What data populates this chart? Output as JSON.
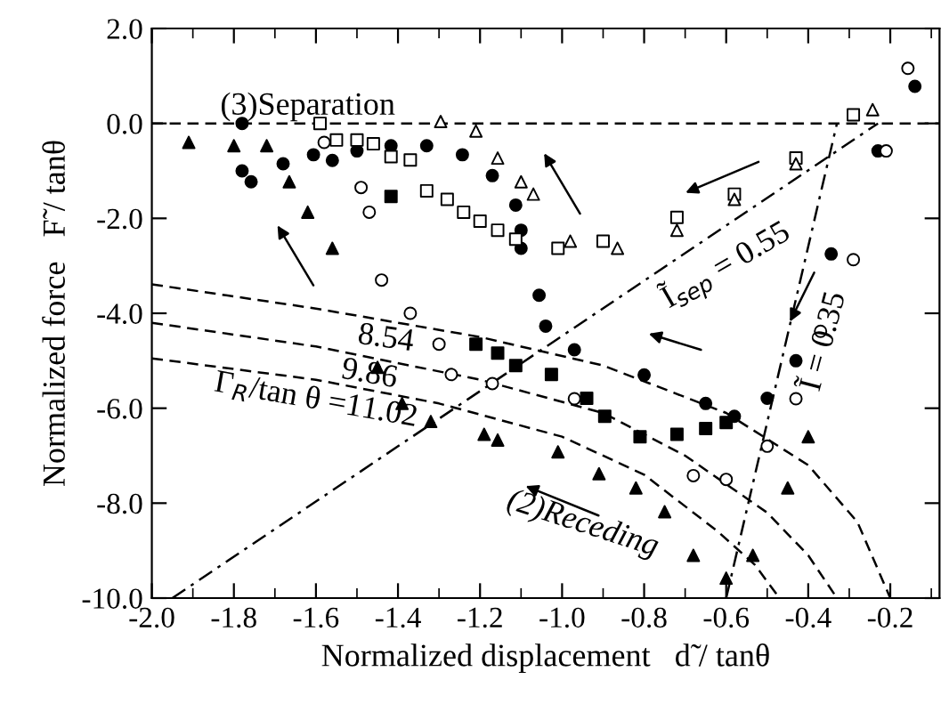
{
  "chart_data": {
    "type": "scatter",
    "xlabel": "Normalized displacement   d̃ / tanθ",
    "ylabel": "Normalized force   F̃ / tanθ",
    "xlim": [
      -2.0,
      -0.08
    ],
    "ylim": [
      -10.0,
      2.0
    ],
    "xticks": [
      {
        "value": -2.0,
        "label": "-2.0"
      },
      -1.8,
      -1.6,
      -1.4,
      -1.2,
      {
        "value": -1.0,
        "label": "-1.0"
      },
      -0.8,
      -0.6,
      -0.4,
      -0.2
    ],
    "yticks": [
      {
        "value": -10.0,
        "label": "-10.0"
      },
      {
        "value": -8.0,
        "label": "-8.0"
      },
      {
        "value": -6.0,
        "label": "-6.0"
      },
      {
        "value": -4.0,
        "label": "-4.0"
      },
      {
        "value": -2.0,
        "label": "-2.0"
      },
      {
        "value": 0.0,
        "label": "0.0"
      },
      {
        "value": 2.0,
        "label": "2.0"
      }
    ],
    "grid": false,
    "legend": false,
    "ref_lines": [
      {
        "axis": "y",
        "value": 0.0,
        "line_style": "dashed",
        "color": "#000000"
      }
    ],
    "annotations": [
      "(3)Separation",
      "8.54",
      "9.86",
      "Γ$_{R}$/tan θ =11.02",
      "(2)Receding",
      "Ĩ$_{sep}$ = 0.55",
      "Ĩ = 0.35"
    ],
    "series": [
      {
        "type": "line",
        "line_style": "dashed",
        "marker": "none",
        "color": "#000000",
        "x": [
          -2.0,
          -1.6,
          -1.2,
          -0.9,
          -0.6,
          -0.4,
          -0.28,
          -0.2
        ],
        "values": [
          -3.39,
          -3.9,
          -4.5,
          -5.1,
          -6.1,
          -7.2,
          -8.4,
          -10.0
        ]
      },
      {
        "type": "line",
        "line_style": "dashed",
        "marker": "none",
        "color": "#000000",
        "x": [
          -2.0,
          -1.6,
          -1.2,
          -0.9,
          -0.7,
          -0.5,
          -0.4,
          -0.33
        ],
        "values": [
          -4.2,
          -4.7,
          -5.4,
          -6.1,
          -7.0,
          -8.2,
          -9.1,
          -10.0
        ]
      },
      {
        "type": "line",
        "line_style": "dashed",
        "marker": "none",
        "color": "#000000",
        "x": [
          -2.0,
          -1.6,
          -1.3,
          -1.0,
          -0.8,
          -0.62,
          -0.53,
          -0.47
        ],
        "values": [
          -4.95,
          -5.4,
          -5.9,
          -6.6,
          -7.4,
          -8.6,
          -9.3,
          -10.0
        ]
      },
      {
        "type": "line",
        "line_style": "dotted",
        "marker": "none",
        "color": "#000000",
        "x": [
          -1.95,
          -0.23
        ],
        "values": [
          -10.0,
          0.0
        ]
      },
      {
        "type": "line",
        "line_style": "dotted",
        "marker": "none",
        "color": "#000000",
        "x": [
          -0.6,
          -0.33
        ],
        "values": [
          -10.0,
          0.0
        ]
      },
      {
        "marker": "circle",
        "color": "#000000",
        "x": [
          -1.78,
          -1.78,
          -1.758,
          -1.68,
          -1.606,
          -1.56,
          -1.5,
          -1.417,
          -1.33,
          -1.243,
          -1.17,
          -1.113,
          -1.1,
          -1.1
        ],
        "values": [
          0.0,
          -1.0,
          -1.23,
          -0.85,
          -0.66,
          -0.78,
          -0.58,
          -0.47,
          -0.47,
          -0.66,
          -1.1,
          -1.72,
          -2.25,
          -2.63
        ]
      },
      {
        "marker": "circle",
        "color": "#000000",
        "x": [
          -1.056,
          -1.04,
          -0.97,
          -0.8,
          -0.65,
          -0.58,
          -0.5,
          -0.43,
          -0.344,
          -0.23,
          -0.14
        ],
        "values": [
          -3.62,
          -4.27,
          -4.77,
          -5.3,
          -5.9,
          -6.17,
          -5.79,
          -5.0,
          -2.75,
          -0.58,
          0.78
        ]
      },
      {
        "marker": "circle",
        "color": "#ffffff",
        "x": [
          -1.58,
          -1.49,
          -1.47,
          -1.44,
          -1.37,
          -1.3,
          -1.27,
          -1.17,
          -0.97,
          -0.68,
          -0.6,
          -0.5,
          -0.43,
          -0.37,
          -0.29,
          -0.21,
          -0.157
        ],
        "values": [
          -0.4,
          -1.35,
          -1.87,
          -3.3,
          -4.0,
          -4.65,
          -5.29,
          -5.48,
          -5.8,
          -7.42,
          -7.5,
          -6.8,
          -5.8,
          -4.38,
          -2.87,
          -0.58,
          1.16
        ]
      },
      {
        "marker": "square",
        "color": "#000000",
        "x": [
          -1.417,
          -1.21,
          -1.157,
          -1.113,
          -1.026,
          -0.94,
          -0.896,
          -0.81,
          -0.72,
          -0.65,
          -0.6
        ],
        "values": [
          -1.54,
          -4.65,
          -4.84,
          -5.1,
          -5.29,
          -5.79,
          -6.17,
          -6.6,
          -6.55,
          -6.43,
          -6.3
        ]
      },
      {
        "marker": "square",
        "color": "#ffffff",
        "x": [
          -1.59,
          -1.55,
          -1.5,
          -1.46,
          -1.417,
          -1.37,
          -1.33,
          -1.28,
          -1.24,
          -1.2,
          -1.157,
          -1.113,
          -1.01,
          -0.9,
          -0.72,
          -0.58,
          -0.43,
          -0.29
        ],
        "values": [
          0.0,
          -0.35,
          -0.35,
          -0.43,
          -0.7,
          -0.77,
          -1.42,
          -1.6,
          -1.87,
          -2.06,
          -2.25,
          -2.44,
          -2.63,
          -2.48,
          -1.98,
          -1.49,
          -0.73,
          0.18
        ]
      },
      {
        "marker": "triangle",
        "color": "#ffffff",
        "x": [
          -1.296,
          -1.21,
          -1.157,
          -1.1,
          -1.07,
          -0.98,
          -0.865,
          -0.72,
          -0.58,
          -0.43,
          -0.243
        ],
        "values": [
          0.04,
          -0.16,
          -0.73,
          -1.23,
          -1.49,
          -2.48,
          -2.63,
          -2.25,
          -1.6,
          -0.85,
          0.29
        ]
      },
      {
        "marker": "triangle",
        "color": "#000000",
        "x": [
          -1.91,
          -1.8,
          -1.72,
          -1.665,
          -1.62,
          -1.56,
          -1.45,
          -1.39,
          -1.32,
          -1.19,
          -1.157,
          -1.01,
          -0.91,
          -0.82,
          -0.75,
          -0.68,
          -0.6,
          -0.535,
          -0.45,
          -0.4
        ],
        "values": [
          -0.4,
          -0.47,
          -0.47,
          -1.23,
          -1.87,
          -2.63,
          -5.14,
          -5.9,
          -6.28,
          -6.55,
          -6.67,
          -6.92,
          -7.38,
          -7.68,
          -8.18,
          -9.1,
          -9.58,
          -9.1,
          -7.68,
          -6.6
        ]
      }
    ]
  }
}
